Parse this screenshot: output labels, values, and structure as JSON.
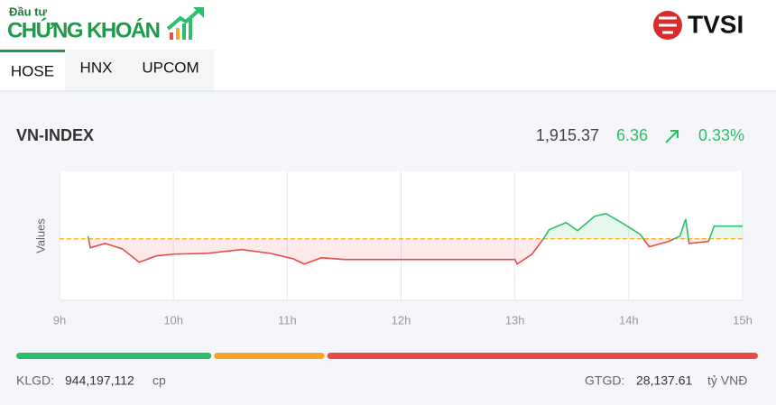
{
  "header": {
    "logo_top": "Đầu tư",
    "logo_main": "CHỨNG KHOÁN",
    "broker": "TVSI"
  },
  "tabs": [
    "HOSE",
    "HNX",
    "UPCOM"
  ],
  "active_tab": 0,
  "index": {
    "name": "VN-INDEX",
    "price": "1,915.37",
    "change": "6.36",
    "change_pct": "0.33%"
  },
  "chart_data": {
    "type": "line",
    "ylabel": "Values",
    "x": [
      9.25,
      9.27,
      9.4,
      9.55,
      9.7,
      9.85,
      10.0,
      10.3,
      10.6,
      10.85,
      11.05,
      11.15,
      11.3,
      11.5,
      13.0,
      13.02,
      13.15,
      13.25,
      13.3,
      13.45,
      13.55,
      13.7,
      13.8,
      13.95,
      14.1,
      14.18,
      14.35,
      14.45,
      14.5,
      14.53,
      14.7,
      14.75,
      15.0
    ],
    "series": [
      {
        "values": [
          1910.4,
          1904.5,
          1906.7,
          1904.0,
          1897.2,
          1900.4,
          1901.3,
          1901.7,
          1903.6,
          1901.7,
          1899.0,
          1896.3,
          1899.5,
          1898.6,
          1898.6,
          1896.3,
          1901.3,
          1909.0,
          1913.6,
          1917.2,
          1913.1,
          1920.4,
          1921.7,
          1916.7,
          1911.3,
          1905.0,
          1907.7,
          1910.4,
          1919.0,
          1906.7,
          1907.7,
          1915.4,
          1915.4
        ],
        "up_color": "#2ebd6b",
        "down_color": "#e84a4a"
      }
    ],
    "reference": 1909.01,
    "reference_color": "#f5a623",
    "xlim": [
      9,
      15
    ],
    "xticks": [
      {
        "value": 9,
        "label": "9h"
      },
      {
        "value": 10,
        "label": "10h"
      },
      {
        "value": 11,
        "label": "11h"
      },
      {
        "value": 12,
        "label": "12h"
      },
      {
        "value": 13,
        "label": "13h"
      },
      {
        "value": 14,
        "label": "14h"
      },
      {
        "value": 15,
        "label": "15h"
      }
    ],
    "ylim": [
      1878,
      1943
    ],
    "grid": true
  },
  "market_breadth": {
    "values": [
      106,
      60,
      234
    ],
    "colors": [
      "#2ebd6b",
      "#f5a623",
      "#e84a4a"
    ]
  },
  "footer": {
    "volume_label": "KLGD:",
    "volume": "944,197,112",
    "volume_unit": "cp",
    "value_label": "GTGD:",
    "value": "28,137.61",
    "value_unit": "tỷ VNĐ"
  }
}
